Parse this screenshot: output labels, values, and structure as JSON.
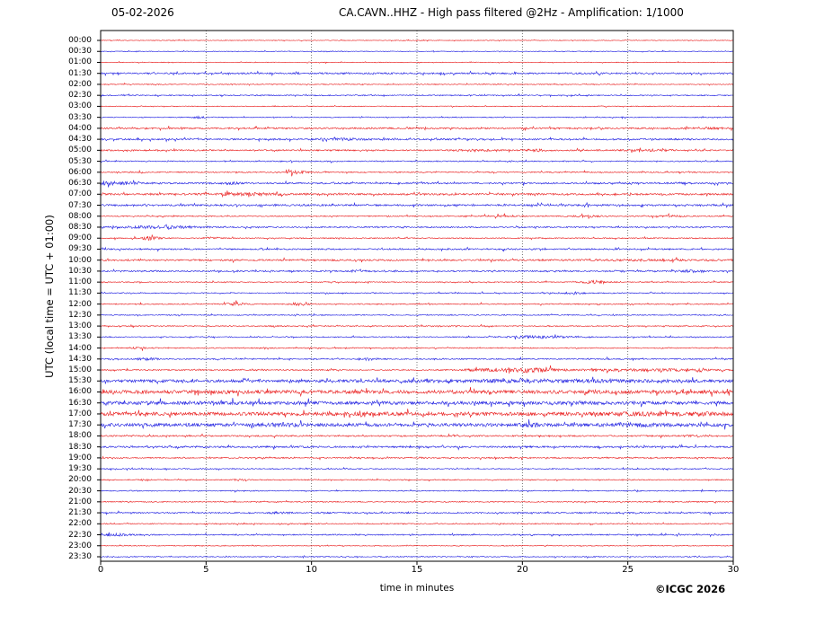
{
  "header": {
    "date": "05-02-2026",
    "title": "CA.CAVN..HHZ - High pass filtered @2Hz - Amplification: 1/1000"
  },
  "footer": {
    "copyright": "©ICGC 2026"
  },
  "chart_data": {
    "type": "line",
    "subtype": "helicorder-dayplot",
    "date": "05-02-2026",
    "title": "CA.CAVN..HHZ - High pass filtered @2Hz - Amplification: 1/1000",
    "xlabel": "time in minutes",
    "ylabel": "UTC (local time = UTC + 01:00)",
    "x_range_minutes": [
      0,
      30
    ],
    "x_ticks": [
      0,
      5,
      10,
      15,
      20,
      25,
      30
    ],
    "grid_minutes": [
      5,
      10,
      15,
      20,
      25
    ],
    "grid_on": true,
    "legend": "none",
    "trace_colors": {
      "red": "#e60000",
      "blue": "#0000dd"
    },
    "grid_color": "#555555",
    "frame_color": "#000000",
    "rows": [
      {
        "label": "00:00",
        "color": "red",
        "amp": 0.35,
        "events": []
      },
      {
        "label": "00:30",
        "color": "blue",
        "amp": 0.35,
        "events": []
      },
      {
        "label": "01:00",
        "color": "red",
        "amp": 0.35,
        "events": []
      },
      {
        "label": "01:30",
        "color": "blue",
        "amp": 0.85,
        "events": []
      },
      {
        "label": "02:00",
        "color": "red",
        "amp": 0.45,
        "events": []
      },
      {
        "label": "02:30",
        "color": "blue",
        "amp": 0.6,
        "events": []
      },
      {
        "label": "03:00",
        "color": "red",
        "amp": 0.4,
        "events": []
      },
      {
        "label": "03:30",
        "color": "blue",
        "amp": 0.45,
        "events": [
          {
            "m": 4.7,
            "w": 0.25,
            "a": 1.0
          }
        ]
      },
      {
        "label": "04:00",
        "color": "red",
        "amp": 0.85,
        "events": [
          {
            "m": 28.5,
            "w": 0.8,
            "a": 0.5
          }
        ]
      },
      {
        "label": "04:30",
        "color": "blue",
        "amp": 0.85,
        "events": [
          {
            "m": 11.5,
            "w": 0.8,
            "a": 0.7
          }
        ]
      },
      {
        "label": "05:00",
        "color": "red",
        "amp": 0.75,
        "events": [
          {
            "m": 17.7,
            "w": 0.5,
            "a": 0.9
          },
          {
            "m": 20.6,
            "w": 0.4,
            "a": 0.9
          },
          {
            "m": 26.0,
            "w": 0.8,
            "a": 0.7
          }
        ]
      },
      {
        "label": "05:30",
        "color": "blue",
        "amp": 0.55,
        "events": []
      },
      {
        "label": "06:00",
        "color": "red",
        "amp": 0.6,
        "events": [
          {
            "m": 9.3,
            "w": 0.35,
            "a": 1.9
          }
        ]
      },
      {
        "label": "06:30",
        "color": "blue",
        "amp": 0.85,
        "events": [
          {
            "m": 0.6,
            "w": 0.7,
            "a": 1.5
          },
          {
            "m": 6.2,
            "w": 0.3,
            "a": 1.0
          }
        ]
      },
      {
        "label": "07:00",
        "color": "red",
        "amp": 0.95,
        "events": [
          {
            "m": 6.8,
            "w": 1.2,
            "a": 1.1
          }
        ]
      },
      {
        "label": "07:30",
        "color": "blue",
        "amp": 0.95,
        "events": []
      },
      {
        "label": "08:00",
        "color": "red",
        "amp": 0.55,
        "events": [
          {
            "m": 19.0,
            "w": 0.5,
            "a": 0.8
          },
          {
            "m": 23.0,
            "w": 0.6,
            "a": 0.8
          },
          {
            "m": 27.0,
            "w": 0.5,
            "a": 0.6
          }
        ]
      },
      {
        "label": "08:30",
        "color": "blue",
        "amp": 0.7,
        "events": [
          {
            "m": 2.8,
            "w": 1.3,
            "a": 1.2
          }
        ]
      },
      {
        "label": "09:00",
        "color": "red",
        "amp": 0.55,
        "events": [
          {
            "m": 2.3,
            "w": 0.3,
            "a": 1.9
          },
          {
            "m": 5.3,
            "w": 0.25,
            "a": 1.0
          }
        ]
      },
      {
        "label": "09:30",
        "color": "blue",
        "amp": 0.75,
        "events": []
      },
      {
        "label": "10:00",
        "color": "red",
        "amp": 0.85,
        "events": [
          {
            "m": 26.0,
            "w": 2.5,
            "a": 0.5
          }
        ]
      },
      {
        "label": "10:30",
        "color": "blue",
        "amp": 0.75,
        "events": [
          {
            "m": 12.1,
            "w": 0.3,
            "a": 0.8
          },
          {
            "m": 28.0,
            "w": 0.3,
            "a": 1.0
          }
        ]
      },
      {
        "label": "11:00",
        "color": "red",
        "amp": 0.5,
        "events": [
          {
            "m": 23.5,
            "w": 0.45,
            "a": 1.6
          }
        ]
      },
      {
        "label": "11:30",
        "color": "blue",
        "amp": 0.55,
        "events": [
          {
            "m": 22.4,
            "w": 0.3,
            "a": 1.2
          }
        ]
      },
      {
        "label": "12:00",
        "color": "red",
        "amp": 0.55,
        "events": [
          {
            "m": 6.4,
            "w": 0.3,
            "a": 1.6
          },
          {
            "m": 9.4,
            "w": 0.3,
            "a": 1.6
          }
        ]
      },
      {
        "label": "12:30",
        "color": "blue",
        "amp": 0.5,
        "events": []
      },
      {
        "label": "13:00",
        "color": "red",
        "amp": 0.55,
        "events": []
      },
      {
        "label": "13:30",
        "color": "blue",
        "amp": 0.55,
        "events": [
          {
            "m": 20.8,
            "w": 1.1,
            "a": 1.3
          }
        ]
      },
      {
        "label": "14:00",
        "color": "red",
        "amp": 0.55,
        "events": [
          {
            "m": 1.8,
            "w": 0.25,
            "a": 0.9
          }
        ]
      },
      {
        "label": "14:30",
        "color": "blue",
        "amp": 0.65,
        "events": [
          {
            "m": 2.2,
            "w": 0.4,
            "a": 0.9
          },
          {
            "m": 12.5,
            "w": 0.3,
            "a": 0.6
          }
        ]
      },
      {
        "label": "15:00",
        "color": "red",
        "amp": 0.65,
        "events": [
          {
            "m": 18.0,
            "w": 0.6,
            "a": 1.0
          },
          {
            "m": 20.2,
            "w": 0.9,
            "a": 2.4
          },
          {
            "m": 24.5,
            "w": 1.5,
            "a": 0.7
          },
          {
            "m": 27.5,
            "w": 1.2,
            "a": 0.8
          }
        ]
      },
      {
        "label": "15:30",
        "color": "blue",
        "amp": 1.5,
        "events": [
          {
            "m": 21.0,
            "w": 4.0,
            "a": 0.7
          }
        ]
      },
      {
        "label": "16:00",
        "color": "red",
        "amp": 1.9,
        "events": []
      },
      {
        "label": "16:30",
        "color": "blue",
        "amp": 1.8,
        "events": []
      },
      {
        "label": "17:00",
        "color": "red",
        "amp": 1.9,
        "events": [
          {
            "m": 12.4,
            "w": 0.12,
            "a": 2.6
          },
          {
            "m": 27.0,
            "w": 2.2,
            "a": 0.7
          }
        ]
      },
      {
        "label": "17:30",
        "color": "blue",
        "amp": 1.8,
        "events": [
          {
            "m": 8.6,
            "w": 0.5,
            "a": 1.0
          },
          {
            "m": 20.5,
            "w": 0.4,
            "a": 0.9
          },
          {
            "m": 25.0,
            "w": 0.7,
            "a": 1.0
          }
        ]
      },
      {
        "label": "18:00",
        "color": "red",
        "amp": 0.75,
        "events": [
          {
            "m": 28.0,
            "w": 0.3,
            "a": 0.6
          }
        ]
      },
      {
        "label": "18:30",
        "color": "blue",
        "amp": 0.95,
        "events": []
      },
      {
        "label": "19:00",
        "color": "red",
        "amp": 0.65,
        "events": []
      },
      {
        "label": "19:30",
        "color": "blue",
        "amp": 0.55,
        "events": []
      },
      {
        "label": "20:00",
        "color": "red",
        "amp": 0.5,
        "events": [
          {
            "m": 2.0,
            "w": 0.2,
            "a": 0.8
          },
          {
            "m": 6.6,
            "w": 0.25,
            "a": 0.8
          }
        ]
      },
      {
        "label": "20:30",
        "color": "blue",
        "amp": 0.5,
        "events": []
      },
      {
        "label": "21:00",
        "color": "red",
        "amp": 0.55,
        "events": []
      },
      {
        "label": "21:30",
        "color": "blue",
        "amp": 0.7,
        "events": [
          {
            "m": 8.5,
            "w": 0.3,
            "a": 1.2
          }
        ]
      },
      {
        "label": "22:00",
        "color": "red",
        "amp": 0.55,
        "events": []
      },
      {
        "label": "22:30",
        "color": "blue",
        "amp": 0.65,
        "events": [
          {
            "m": 0.5,
            "w": 0.6,
            "a": 1.2
          }
        ]
      },
      {
        "label": "23:00",
        "color": "red",
        "amp": 0.4,
        "events": []
      },
      {
        "label": "23:30",
        "color": "blue",
        "amp": 0.5,
        "events": []
      }
    ]
  }
}
